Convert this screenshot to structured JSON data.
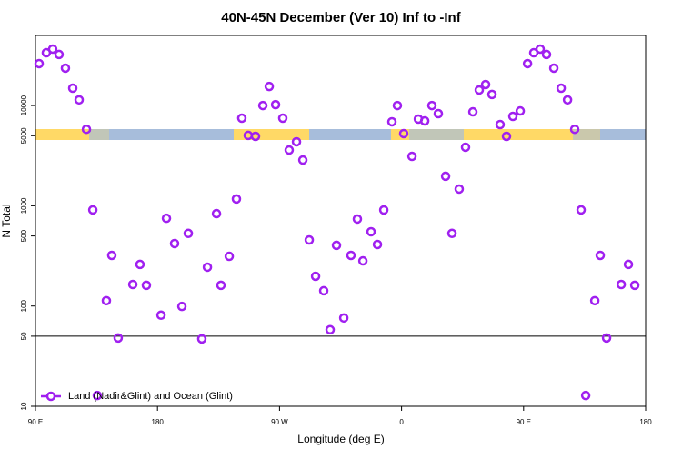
{
  "chart_data": {
    "type": "scatter",
    "title": "40N-45N December (Ver 10)   Inf to -Inf",
    "x_label": "Longitude (deg E)",
    "y_label": "N Total",
    "xlim": [
      90,
      540
    ],
    "xticks": [
      {
        "value": 90,
        "label": "90 E"
      },
      180,
      {
        "value": 270,
        "label": "90 W"
      },
      {
        "value": 360,
        "label": "0"
      },
      {
        "value": 450,
        "label": "90 E"
      },
      {
        "value": 540,
        "label": "180"
      }
    ],
    "ylim": [
      10,
      50000
    ],
    "yticks": [
      10,
      50,
      100,
      500,
      1000,
      5000,
      10000
    ],
    "log_y": true,
    "hline": 50,
    "legend": "bottom-left",
    "series": [
      {
        "name": "Land (Nadir&Glint) and Ocean (Glint)",
        "color": "#a020f0",
        "x": [
          92.7,
          98,
          102.7,
          107.4,
          112.1,
          117.5,
          122.2,
          127.6,
          132.3,
          135.6,
          142.3,
          146.3,
          151,
          161.8,
          167.1,
          171.8,
          182.6,
          186.6,
          192.6,
          198,
          202.7,
          212.7,
          216.8,
          223.5,
          226.8,
          232.9,
          238.2,
          242.2,
          246.9,
          252.3,
          257.7,
          262.4,
          267.1,
          272.4,
          277.1,
          282.5,
          287.2,
          291.9,
          296.6,
          302.6,
          307.3,
          312,
          317.4,
          322.7,
          327.4,
          331.5,
          337.5,
          342.2,
          346.9,
          352.9,
          356.9,
          361.6,
          367.7,
          372.4,
          377.1,
          382.4,
          387.1,
          392.5,
          397.2,
          402.5,
          407.2,
          412.6,
          417.3,
          422,
          426.7,
          432.7,
          437.4,
          442.1,
          447.5,
          452.9,
          457.5,
          462.2,
          466.9,
          472.3,
          477.7,
          482.4,
          487.7,
          492.4,
          495.8,
          502.5,
          506.5,
          511.2,
          522,
          527.3,
          532
        ],
        "values": [
          26200,
          33600,
          36600,
          32300,
          23600,
          14900,
          11400,
          5800,
          910,
          12.8,
          113,
          320,
          48,
          164,
          260,
          161,
          81,
          750,
          420,
          99,
          530,
          47,
          244,
          835,
          161,
          313,
          1170,
          7480,
          5040,
          4930,
          10000,
          15500,
          10200,
          7480,
          3600,
          4350,
          2860,
          456,
          198,
          142,
          58,
          403,
          76,
          320,
          738,
          282,
          551,
          411,
          908,
          6890,
          10000,
          5250,
          3110,
          7330,
          7030,
          10000,
          8300,
          1970,
          530,
          1470,
          3840,
          8650,
          14300,
          16200,
          12900,
          6460,
          4930,
          7800,
          8830,
          26200,
          33600,
          36600,
          32300,
          23600,
          14900,
          11400,
          5800,
          910,
          12.8,
          113,
          320,
          48,
          164,
          260,
          161
        ]
      }
    ]
  }
}
